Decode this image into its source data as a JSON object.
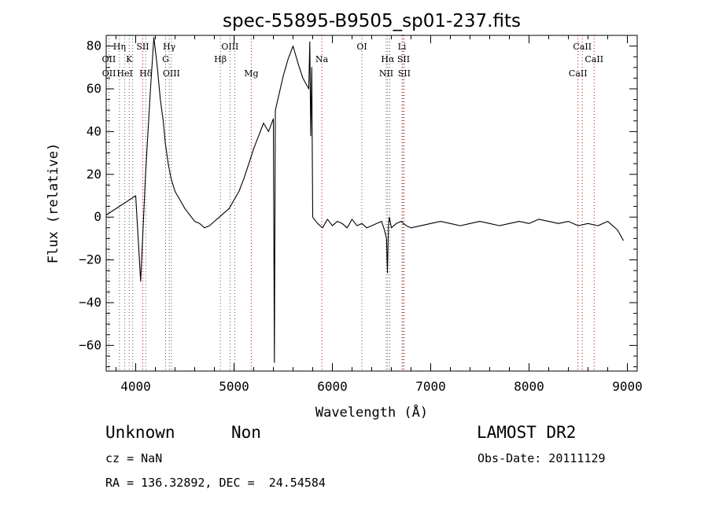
{
  "chart_data": {
    "type": "line",
    "title": "spec-55895-B9505_sp01-237.fits",
    "xlabel": "Wavelength (Å)",
    "ylabel": "Flux (relative)",
    "xlim": [
      3700,
      9100
    ],
    "ylim": [
      -72,
      85
    ],
    "xticks": [
      4000,
      5000,
      6000,
      7000,
      8000,
      9000
    ],
    "yticks": [
      -60,
      -40,
      -20,
      0,
      20,
      40,
      60,
      80
    ],
    "line_color": "#000000",
    "marker_color": "#c00000",
    "series": [
      {
        "name": "flux",
        "x": [
          3700,
          4000,
          4050,
          4100,
          4150,
          4185,
          4200,
          4220,
          4250,
          4280,
          4300,
          4330,
          4360,
          4400,
          4450,
          4500,
          4550,
          4600,
          4650,
          4700,
          4750,
          4800,
          4850,
          4900,
          4950,
          5000,
          5050,
          5100,
          5150,
          5200,
          5250,
          5300,
          5350,
          5400,
          5410,
          5420,
          5430,
          5450,
          5500,
          5550,
          5600,
          5650,
          5700,
          5760,
          5770,
          5780,
          5790,
          5800,
          5850,
          5900,
          5950,
          6000,
          6050,
          6100,
          6150,
          6200,
          6250,
          6300,
          6350,
          6400,
          6450,
          6500,
          6530,
          6550,
          6560,
          6570,
          6580,
          6600,
          6650,
          6700,
          6750,
          6800,
          6900,
          7000,
          7100,
          7200,
          7300,
          7400,
          7500,
          7600,
          7700,
          7800,
          7900,
          8000,
          8100,
          8200,
          8300,
          8400,
          8500,
          8600,
          8700,
          8800,
          8900,
          8960
        ],
        "y": [
          1,
          10,
          -30,
          20,
          60,
          84,
          78,
          70,
          55,
          45,
          35,
          25,
          18,
          12,
          8,
          4,
          1,
          -2,
          -3,
          -5,
          -4,
          -2,
          0,
          2,
          4,
          8,
          12,
          18,
          25,
          32,
          38,
          44,
          40,
          46,
          -68,
          50,
          52,
          56,
          66,
          74,
          80,
          72,
          65,
          60,
          82,
          38,
          70,
          0,
          -3,
          -5,
          -1,
          -4,
          -2,
          -3,
          -5,
          -1,
          -4,
          -3,
          -5,
          -4,
          -3,
          -2,
          -6,
          -10,
          -26,
          -4,
          0,
          -5,
          -3,
          -2,
          -4,
          -5,
          -4,
          -3,
          -2,
          -3,
          -4,
          -3,
          -2,
          -3,
          -4,
          -3,
          -2,
          -3,
          -1,
          -2,
          -3,
          -2,
          -4,
          -3,
          -4,
          -2,
          -6,
          -11
        ]
      }
    ],
    "lines": [
      {
        "label": "Hη",
        "x": 3835,
        "row": 0
      },
      {
        "label": "OII",
        "x": 3727,
        "row": 1
      },
      {
        "label": "OII",
        "x": 3729,
        "row": 2
      },
      {
        "label": "K",
        "x": 3934,
        "row": 1
      },
      {
        "label": "HeI",
        "x": 3889,
        "row": 2
      },
      {
        "label": "SII",
        "x": 4072,
        "row": 0
      },
      {
        "label": "Hδ",
        "x": 4102,
        "row": 2
      },
      {
        "label": "Hγ",
        "x": 4341,
        "row": 0
      },
      {
        "label": "G",
        "x": 4304,
        "row": 1
      },
      {
        "label": "OIII",
        "x": 4363,
        "row": 2
      },
      {
        "label": "OIII",
        "x": 4959,
        "row": 0
      },
      {
        "label": "Hβ",
        "x": 4861,
        "row": 1
      },
      {
        "label": "Mg",
        "x": 5175,
        "row": 2
      },
      {
        "label": "Na",
        "x": 5893,
        "row": 1
      },
      {
        "label": "OI",
        "x": 6300,
        "row": 0
      },
      {
        "label": "Li",
        "x": 6708,
        "row": 0
      },
      {
        "label": "Hα",
        "x": 6563,
        "row": 1
      },
      {
        "label": "SII",
        "x": 6724,
        "row": 1
      },
      {
        "label": "NII",
        "x": 6548,
        "row": 2
      },
      {
        "label": "SII",
        "x": 6731,
        "row": 2
      },
      {
        "label": "CaII",
        "x": 8542,
        "row": 0
      },
      {
        "label": "CaII",
        "x": 8662,
        "row": 1
      },
      {
        "label": "CaII",
        "x": 8498,
        "row": 2
      }
    ],
    "line_marks": [
      {
        "x": 3727,
        "red": false
      },
      {
        "x": 3835,
        "red": false
      },
      {
        "x": 3889,
        "red": false
      },
      {
        "x": 3934,
        "red": false
      },
      {
        "x": 3969,
        "red": false
      },
      {
        "x": 4072,
        "red": true
      },
      {
        "x": 4102,
        "red": false
      },
      {
        "x": 4304,
        "red": false
      },
      {
        "x": 4341,
        "red": false
      },
      {
        "x": 4363,
        "red": false
      },
      {
        "x": 4861,
        "red": false
      },
      {
        "x": 4959,
        "red": false
      },
      {
        "x": 5007,
        "red": false
      },
      {
        "x": 5175,
        "red": true
      },
      {
        "x": 5893,
        "red": true
      },
      {
        "x": 6300,
        "red": false
      },
      {
        "x": 6548,
        "red": false
      },
      {
        "x": 6563,
        "red": false
      },
      {
        "x": 6584,
        "red": false
      },
      {
        "x": 6708,
        "red": false
      },
      {
        "x": 6717,
        "red": true
      },
      {
        "x": 6731,
        "red": true
      },
      {
        "x": 8498,
        "red": true
      },
      {
        "x": 8542,
        "red": true
      },
      {
        "x": 8662,
        "red": true
      }
    ]
  },
  "info": {
    "class": "Unknown",
    "subclass": "Non",
    "survey": "LAMOST DR2",
    "cz": "cz = NaN",
    "obs_date": "Obs-Date: 20111129",
    "coords": "RA = 136.32892, DEC =  24.54584"
  }
}
